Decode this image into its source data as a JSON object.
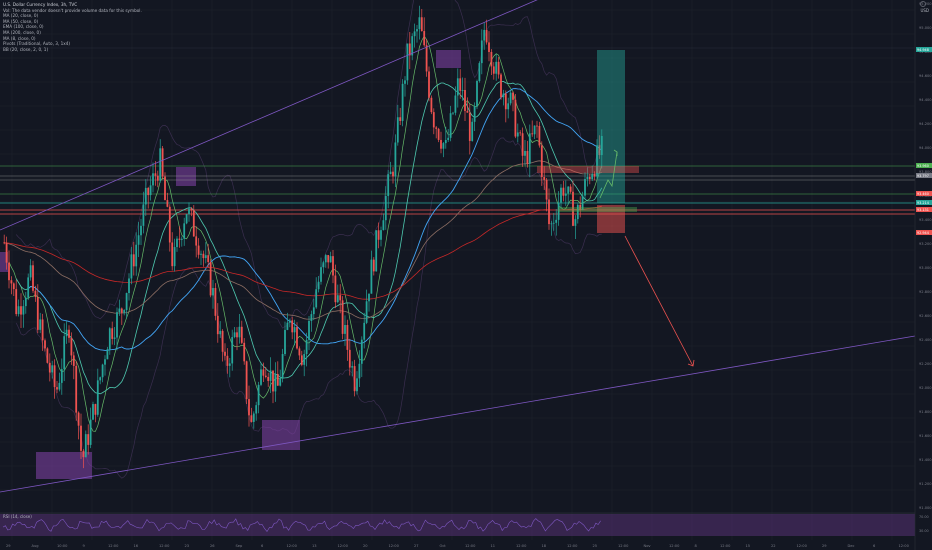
{
  "legend": {
    "title": "U.S. Dollar Currency Index, 3h, TVC",
    "lines": [
      "Vol: The data vendor doesn't provide volume data for this symbol.",
      "MA (20, close, 0)",
      "MA (50, close, 0)",
      "EMA (100, close, 0)",
      "MA (200, close, 0)",
      "MA (8, close, 0)",
      "Pivots (Traditional, Auto, 3, 1x4)",
      "BB (20, close, 2, 0, 1)"
    ]
  },
  "currency": "USD",
  "rsi_label": "RSI (14, close)",
  "colors": {
    "background": "#131722",
    "up": "#26a69a",
    "down": "#ef5350",
    "ma20": "#4ec9b0",
    "ma50": "#42a5f5",
    "ema100": "#8d6e63",
    "ma200": "#c62828",
    "bb": "#7e57c2",
    "zone": "#7b3fa0",
    "trend": "#7e57c2",
    "support": "#ef5350",
    "resist": "#4caf50",
    "target": "#26a69a"
  },
  "chart_data": {
    "type": "candlestick",
    "title": "U.S. Dollar Currency Index, 3h, TVC",
    "time_labels": [
      "29",
      "Aug",
      "10:00",
      "9",
      "12:00",
      "16",
      "12:00",
      "23",
      "26",
      "Sep",
      "6",
      "12:00",
      "13",
      "12:00",
      "20",
      "12:00",
      "27",
      "Oct",
      "12:00",
      "11",
      "12:00",
      "18",
      "12:00",
      "25",
      "12:00",
      "Nov",
      "12:00",
      "8",
      "12:00",
      "15",
      "22",
      "12:00",
      "29",
      "Dec",
      "6",
      "12:00"
    ],
    "price_labels": [
      "95.200",
      "95.000",
      "94.800",
      "94.600",
      "94.400",
      "94.200",
      "94.000",
      "93.800",
      "93.600",
      "93.400",
      "93.200",
      "93.000",
      "92.800",
      "92.600",
      "92.400",
      "92.200",
      "92.000",
      "91.800",
      "91.600",
      "91.400",
      "91.200",
      "91.000"
    ],
    "price_tags": [
      "94.948",
      "93.960",
      "93.797",
      "93.460",
      "93.214",
      "93.131",
      "92.944"
    ],
    "rsi_labels": [
      "70.00",
      "30.00"
    ],
    "trend": [
      93.2,
      92.6,
      92.9,
      92.3,
      91.9,
      92.5,
      91.3,
      91.8,
      92.4,
      92.6,
      93.1,
      93.6,
      93.9,
      93.0,
      93.5,
      93.2,
      92.8,
      92.1,
      92.5,
      91.6,
      92.2,
      91.9,
      92.6,
      92.2,
      92.8,
      93.1,
      92.5,
      92.0,
      92.8,
      93.4,
      93.9,
      94.8,
      95.1,
      94.3,
      94.0,
      94.6,
      94.1,
      95.1,
      94.6,
      94.4,
      93.9,
      94.2,
      93.3,
      93.7,
      93.4,
      93.8,
      94.0
    ]
  }
}
